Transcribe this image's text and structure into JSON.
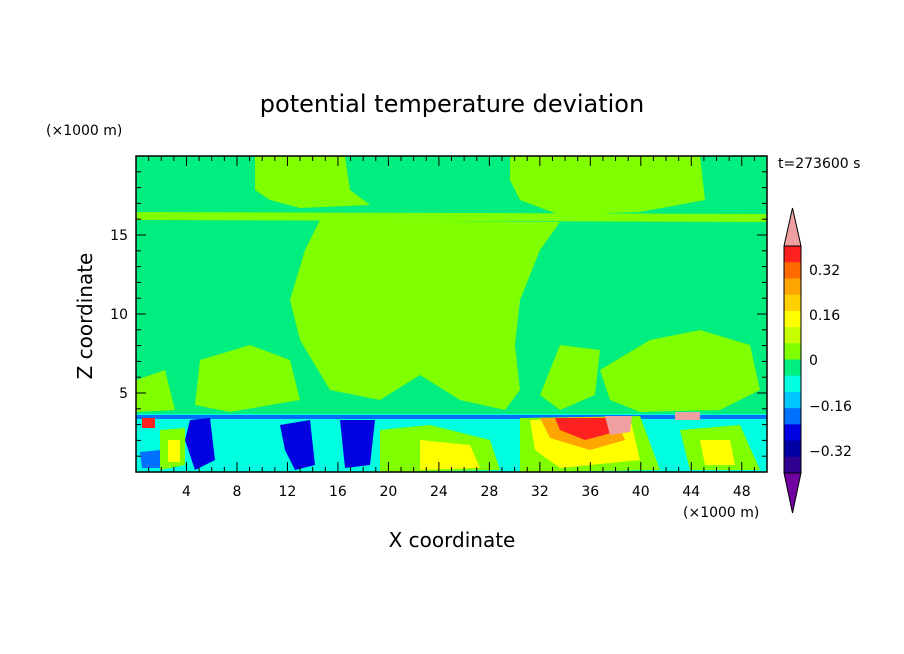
{
  "chart_data": {
    "type": "heatmap",
    "title": "potential temperature deviation",
    "xlabel": "X coordinate",
    "ylabel": "Z coordinate",
    "x_unit": "(×1000 m)",
    "y_unit": "(×1000 m)",
    "time_label": "t=273600 s",
    "xlim": [
      0,
      50
    ],
    "ylim": [
      0,
      20
    ],
    "x_ticks": [
      "4",
      "8",
      "12",
      "16",
      "20",
      "24",
      "28",
      "32",
      "36",
      "40",
      "44",
      "48"
    ],
    "y_ticks": [
      "5",
      "10",
      "15"
    ],
    "colorbar": {
      "levels": [
        -0.4,
        -0.36,
        -0.32,
        -0.28,
        -0.24,
        -0.2,
        -0.16,
        -0.12,
        -0.08,
        -0.04,
        0,
        0.04,
        0.08,
        0.12,
        0.16,
        0.2,
        0.24,
        0.28,
        0.32,
        0.36
      ],
      "labels": [
        "0.32",
        "0.16",
        "0",
        "−0.16",
        "−0.32"
      ],
      "colors": [
        "#f0a0a0",
        "#ff2020",
        "#ff6a00",
        "#ffa500",
        "#ffd000",
        "#ffff00",
        "#c8ff00",
        "#80ff00",
        "#00ee80",
        "#00ffe0",
        "#00c8ff",
        "#0070ff",
        "#0000e0",
        "#0000a0",
        "#300090",
        "#7000a0"
      ],
      "upper_extend": "#f0a0a0",
      "lower_extend": "#7000a0"
    }
  },
  "colors": {
    "background_field": "#00ee80",
    "warm_field": "#80ff00",
    "cool_field": "#00ffe0"
  }
}
